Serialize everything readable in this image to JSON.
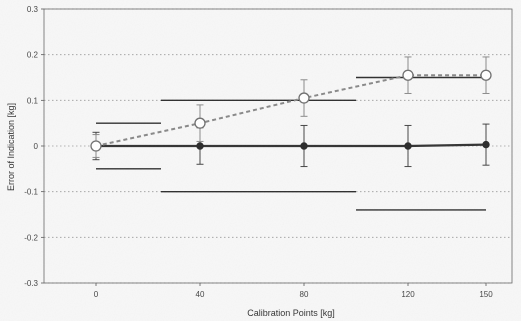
{
  "chart_data": {
    "type": "scatter",
    "title": "",
    "xlabel": "Calibration Points [kg]",
    "ylabel": "Error of Indication [kg]",
    "xlim": [
      -20,
      160
    ],
    "ylim": [
      -0.3,
      0.3
    ],
    "x_ticks": [
      0,
      40,
      80,
      120,
      150
    ],
    "x_tick_labels": [
      "0",
      "40",
      "80",
      "120",
      "150"
    ],
    "y_ticks": [
      -0.3,
      -0.2,
      -0.1,
      0,
      0.1,
      0.2,
      0.3
    ],
    "y_tick_labels": [
      "-0.3",
      "-0.2",
      "-0.1",
      "0",
      "0.1",
      "0.2",
      "0.3"
    ],
    "grid": true,
    "series": [
      {
        "style": "solid-filled",
        "color": "#333333",
        "x": [
          0,
          40,
          80,
          120,
          150
        ],
        "y": [
          0,
          0,
          0,
          0,
          0.003
        ],
        "err": [
          0.03,
          0.04,
          0.045,
          0.045,
          0.045
        ]
      },
      {
        "style": "dashed-open",
        "color": "#888888",
        "x": [
          0,
          40,
          80,
          120,
          150
        ],
        "y": [
          0,
          0.05,
          0.105,
          0.155,
          0.155
        ],
        "err": [
          0.025,
          0.04,
          0.04,
          0.04,
          0.04
        ]
      }
    ],
    "limit_lines": [
      {
        "x": [
          0,
          25
        ],
        "y": 0.05
      },
      {
        "x": [
          0,
          25
        ],
        "y": -0.05
      },
      {
        "x": [
          25,
          100
        ],
        "y": 0.1
      },
      {
        "x": [
          25,
          100
        ],
        "y": -0.1
      },
      {
        "x": [
          100,
          150
        ],
        "y": 0.15
      },
      {
        "x": [
          100,
          150
        ],
        "y": -0.14
      }
    ]
  }
}
